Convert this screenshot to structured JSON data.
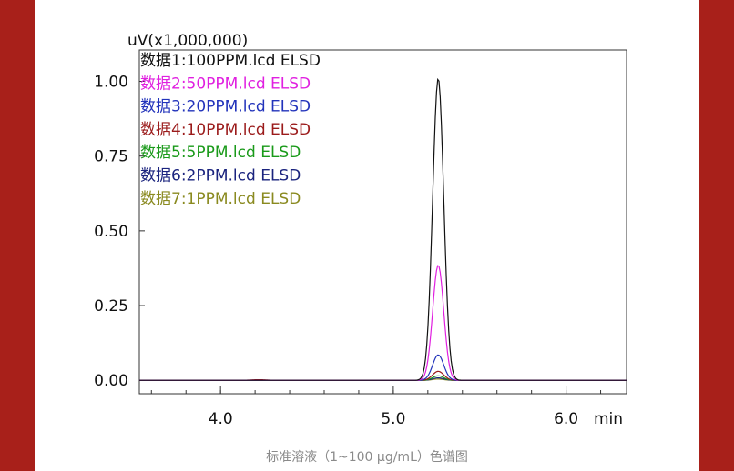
{
  "page": {
    "border_color": "#a8201a",
    "background": "#ffffff",
    "caption": "标准溶液（1~100 μg/mL）色谱图"
  },
  "chart_data": {
    "type": "line",
    "title": "",
    "xlabel": "min",
    "ylabel": "uV(x1,000,000)",
    "xlim": [
      3.53,
      6.35
    ],
    "ylim": [
      -0.045,
      1.105
    ],
    "x_ticks": [
      {
        "value": 4.0,
        "label": "4.0"
      },
      {
        "value": 5.0,
        "label": "5.0"
      },
      {
        "value": 6.0,
        "label": "6.0"
      }
    ],
    "x_minor_step": 0.2,
    "y_ticks": [
      {
        "value": 0.0,
        "label": "0.00"
      },
      {
        "value": 0.25,
        "label": "0.25"
      },
      {
        "value": 0.5,
        "label": "0.50"
      },
      {
        "value": 0.75,
        "label": "0.75"
      },
      {
        "value": 1.0,
        "label": "1.00"
      }
    ],
    "grid": false,
    "legend_position": "top-left",
    "peak_time": 5.26,
    "series": [
      {
        "name": "数据1:100PPM.lcd ELSD",
        "color": "#111111",
        "peak_height": 1.01
      },
      {
        "name": "数据2:50PPM.lcd ELSD",
        "color": "#e020e0",
        "peak_height": 0.385
      },
      {
        "name": "数据3:20PPM.lcd ELSD",
        "color": "#2233bb",
        "peak_height": 0.085
      },
      {
        "name": "数据4:10PPM.lcd ELSD",
        "color": "#9b1b1b",
        "peak_height": 0.03
      },
      {
        "name": "数据5:5PPM.lcd ELSD",
        "color": "#1a9a1a",
        "peak_height": 0.015
      },
      {
        "name": "数据6:2PPM.lcd ELSD",
        "color": "#1a237e",
        "peak_height": 0.008
      },
      {
        "name": "数据7:1PPM.lcd ELSD",
        "color": "#8a8a20",
        "peak_height": 0.004
      }
    ]
  }
}
